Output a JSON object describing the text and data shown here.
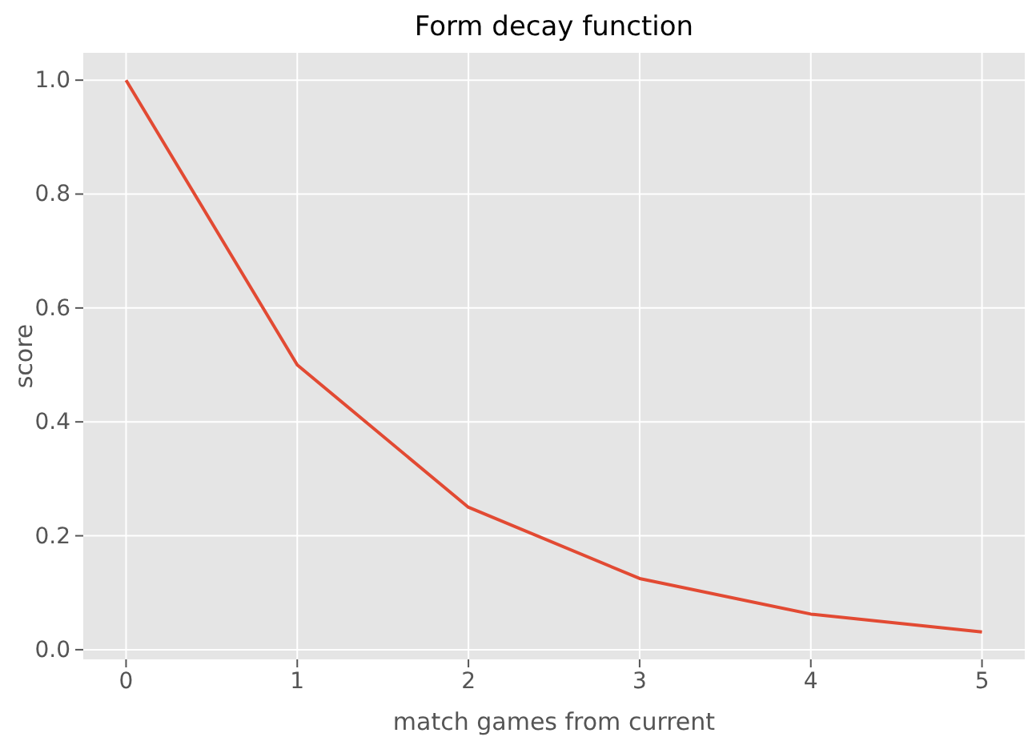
{
  "chart_data": {
    "type": "line",
    "title": "Form decay function",
    "xlabel": "match games from current",
    "ylabel": "score",
    "x": [
      0,
      1,
      2,
      3,
      4,
      5
    ],
    "series": [
      {
        "color": "#e24a33",
        "values": [
          1.0,
          0.5,
          0.25,
          0.125,
          0.0625,
          0.031
        ]
      }
    ],
    "xlim": [
      -0.25,
      5.25
    ],
    "xticks": [
      0,
      1,
      2,
      3,
      4,
      5
    ],
    "ylim": [
      -0.017,
      1.048
    ],
    "yticks": [
      {
        "value": 0,
        "label": "0.0"
      },
      {
        "value": 0.2,
        "label": "0.2"
      },
      {
        "value": 0.4,
        "label": "0.4"
      },
      {
        "value": 0.6,
        "label": "0.6"
      },
      {
        "value": 0.8,
        "label": "0.8"
      },
      {
        "value": 1,
        "label": "1.0"
      }
    ],
    "grid": true,
    "line_style": "solid",
    "marker": "none"
  }
}
